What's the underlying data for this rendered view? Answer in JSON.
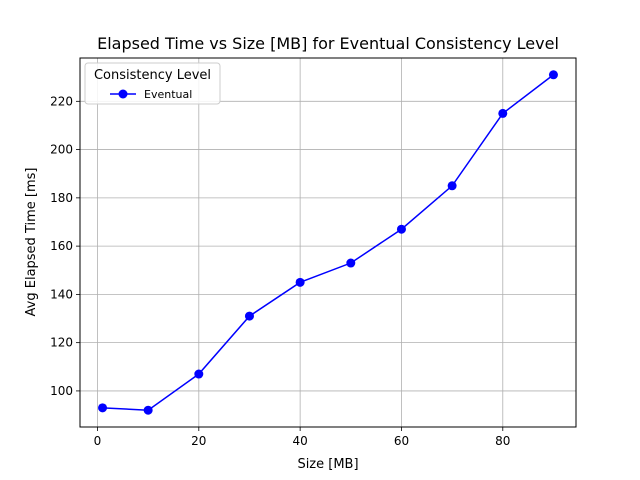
{
  "chart_data": {
    "type": "line",
    "title": "Elapsed Time vs Size [MB] for Eventual Consistency Level",
    "xlabel": "Size [MB]",
    "ylabel": "Avg Elapsed Time [ms]",
    "xlim": [
      -3.45,
      94.45
    ],
    "ylim": [
      85.05,
      237.95
    ],
    "xticks": [
      0,
      20,
      40,
      60,
      80
    ],
    "yticks": [
      100,
      120,
      140,
      160,
      180,
      200,
      220
    ],
    "grid": true,
    "legend": {
      "title": "Consistency Level",
      "placement": "upper-left"
    },
    "series": [
      {
        "name": "Eventual",
        "color": "#0000ff",
        "marker": "circle",
        "x": [
          1,
          10,
          20,
          30,
          40,
          50,
          60,
          70,
          80,
          90
        ],
        "y": [
          93,
          92,
          107,
          131,
          145,
          153,
          167,
          185,
          215,
          231
        ]
      }
    ]
  }
}
